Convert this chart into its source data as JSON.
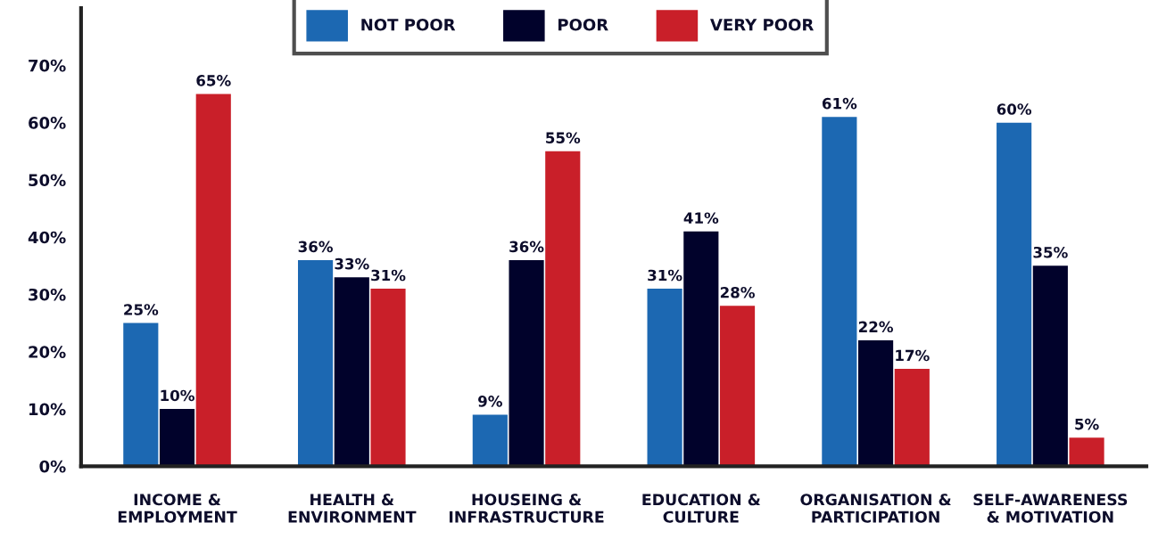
{
  "chart_data": {
    "type": "bar",
    "categories": [
      "INCOME &\nEMPLOYMENT",
      "HEALTH &\nENVIRONMENT",
      "HOUSEING &\nINFRASTRUCTURE",
      "EDUCATION &\nCULTURE",
      "ORGANISATION &\nPARTICIPATION",
      "SELF-AWARENESS\n& MOTIVATION"
    ],
    "series": [
      {
        "name": "NOT POOR",
        "color": "#1c68b2",
        "values": [
          25,
          36,
          9,
          31,
          61,
          60
        ],
        "value_labels": [
          "25%",
          "36%",
          "9%",
          "31%",
          "61%",
          "60%"
        ]
      },
      {
        "name": "POOR",
        "color": "#01022b",
        "values": [
          10,
          33,
          36,
          41,
          22,
          35
        ],
        "value_labels": [
          "10%",
          "33%",
          "36%",
          "41%",
          "22%",
          "35%"
        ]
      },
      {
        "name": "VERY POOR",
        "color": "#c91f29",
        "values": [
          65,
          31,
          55,
          28,
          17,
          5
        ],
        "value_labels": [
          "65%",
          "31%",
          "55%",
          "28%",
          "17%",
          "5%"
        ]
      }
    ],
    "ylim": [
      0,
      80
    ],
    "yticks": [
      {
        "value": 0,
        "label": "0%"
      },
      {
        "value": 10,
        "label": "10%"
      },
      {
        "value": 20,
        "label": "20%"
      },
      {
        "value": 30,
        "label": "30%"
      },
      {
        "value": 40,
        "label": "40%"
      },
      {
        "value": 50,
        "label": "50%"
      },
      {
        "value": 60,
        "label": "60%"
      },
      {
        "value": 70,
        "label": "70%"
      }
    ],
    "grid": false,
    "legend": "top"
  }
}
